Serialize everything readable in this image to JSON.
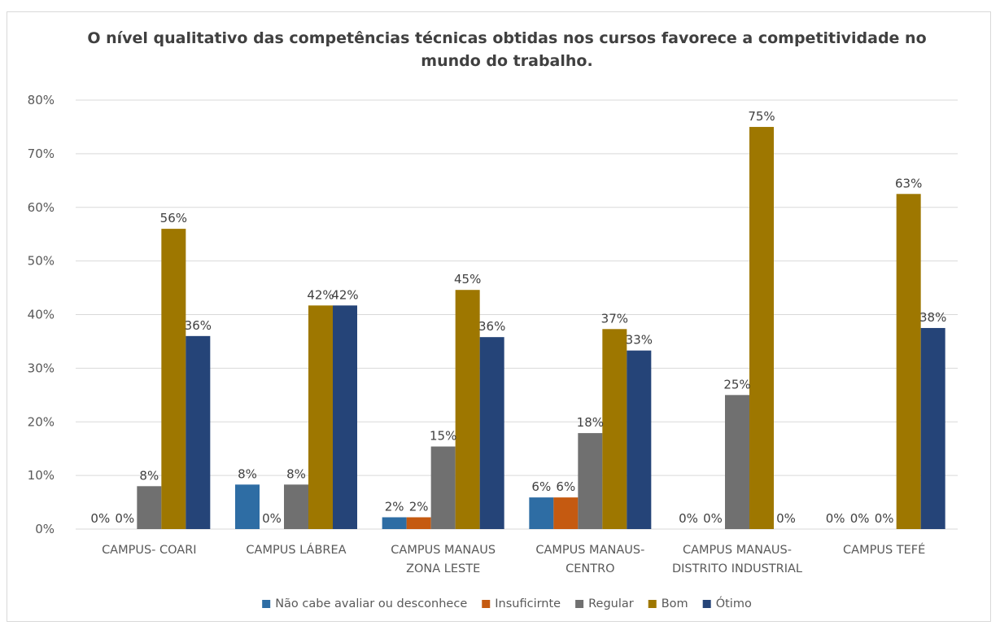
{
  "chart_data": {
    "type": "bar",
    "title_lines": [
      "O nível qualitativo das competências técnicas obtidas nos cursos favorece a competitividade no",
      "mundo do trabalho."
    ],
    "category_lines": [
      [
        "CAMPUS- COARI"
      ],
      [
        "CAMPUS LÁBREA"
      ],
      [
        "CAMPUS MANAUS",
        "ZONA LESTE"
      ],
      [
        "CAMPUS MANAUS-",
        "CENTRO"
      ],
      [
        "CAMPUS MANAUS-",
        "DISTRITO INDUSTRIAL"
      ],
      [
        "CAMPUS TEFÉ"
      ]
    ],
    "ylim": [
      0,
      80
    ],
    "y_ticks": [
      "0%",
      "10%",
      "20%",
      "30%",
      "40%",
      "50%",
      "60%",
      "70%",
      "80%"
    ],
    "grid": true,
    "legend_position": "bottom",
    "series": [
      {
        "name": "Não cabe avaliar ou desconhece",
        "color": "#2e6da4",
        "values": [
          0,
          8.3,
          2.2,
          5.9,
          0,
          0
        ],
        "labels": [
          "0%",
          "8%",
          "2%",
          "6%",
          "0%",
          "0%"
        ]
      },
      {
        "name": "Insuficirnte",
        "color": "#c55a11",
        "values": [
          0,
          0,
          2.2,
          5.9,
          0,
          0
        ],
        "labels": [
          "0%",
          "0%",
          "2%",
          "6%",
          "0%",
          "0%"
        ]
      },
      {
        "name": "Regular",
        "color": "#707070",
        "values": [
          8,
          8.3,
          15.4,
          17.9,
          25,
          0
        ],
        "labels": [
          "8%",
          "8%",
          "15%",
          "18%",
          "25%",
          "0%"
        ]
      },
      {
        "name": "Bom",
        "color": "#9e7700",
        "values": [
          56,
          41.7,
          44.6,
          37.3,
          75,
          62.5
        ],
        "labels": [
          "56%",
          "42%",
          "45%",
          "37%",
          "75%",
          "63%"
        ]
      },
      {
        "name": "Ótimo",
        "color": "#254478",
        "values": [
          36,
          41.7,
          35.8,
          33.3,
          0,
          37.5
        ],
        "labels": [
          "36%",
          "42%",
          "36%",
          "33%",
          "0%",
          "38%"
        ]
      }
    ]
  }
}
